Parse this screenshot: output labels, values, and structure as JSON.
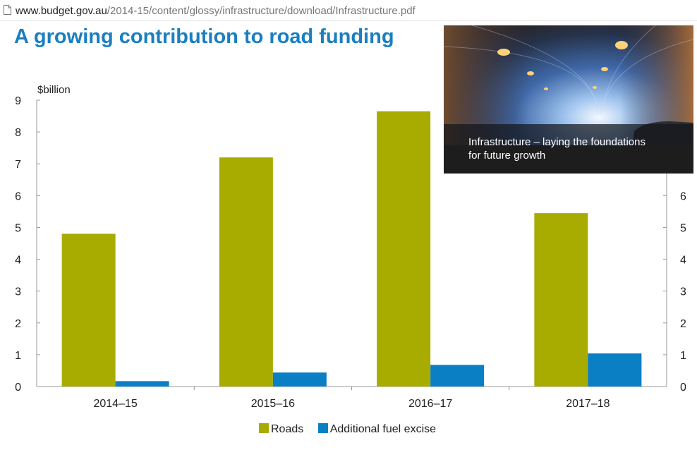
{
  "address_bar": {
    "url_domain": "www.budget.gov.au",
    "url_path": "/2014-15/content/glossy/infrastructure/download/Infrastructure.pdf",
    "icon": "page-icon"
  },
  "promo": {
    "caption_line1": "Infrastructure – laying the foundations",
    "caption_line2": "for future growth",
    "image": "tunnel-photo"
  },
  "colors": {
    "title": "#1a7fc0",
    "roads": "#a8ab00",
    "fuel_excise": "#0b7fc4",
    "axis": "#999999"
  },
  "chart_data": {
    "type": "bar",
    "title": "A growing contribution to road funding",
    "ylabel": "$billion",
    "xlabel": "",
    "ylim": [
      0,
      9
    ],
    "yticks": [
      0,
      1,
      2,
      3,
      4,
      5,
      6,
      7,
      8,
      9
    ],
    "right_axis_ticks_visible": [
      0,
      1,
      2,
      3,
      4,
      5,
      6
    ],
    "grid": false,
    "legend_position": "bottom",
    "categories": [
      "2014–15",
      "2015–16",
      "2016–17",
      "2017–18"
    ],
    "series": [
      {
        "name": "Roads",
        "values": [
          4.8,
          7.2,
          8.65,
          5.45
        ]
      },
      {
        "name": "Additional fuel excise",
        "values": [
          0.17,
          0.44,
          0.68,
          1.04
        ]
      }
    ]
  }
}
